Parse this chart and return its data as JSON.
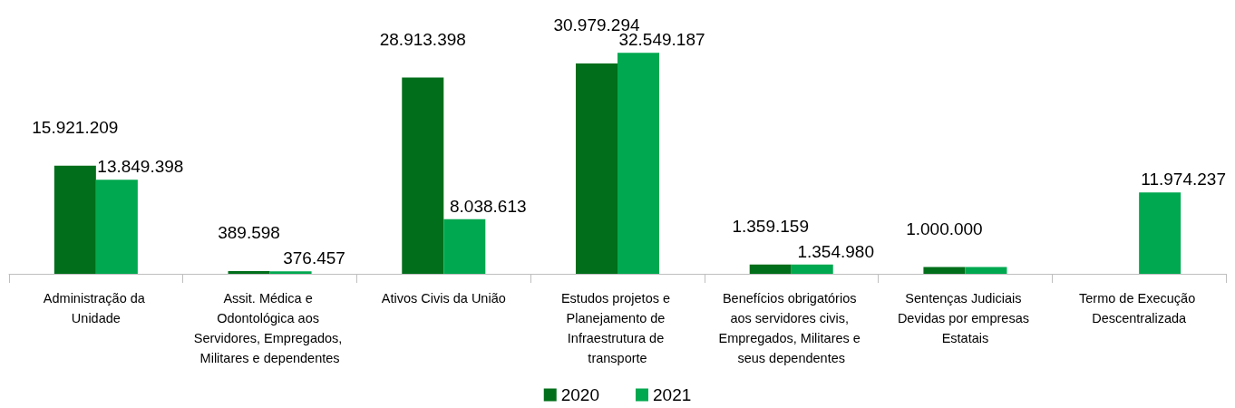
{
  "chart_data": {
    "type": "bar",
    "categories": [
      "Administração da Unidade",
      "Assit. Médica e Odontológica aos Servidores, Empregados, Militares e dependentes",
      "Ativos Civis da União",
      "Estudos projetos e Planejamento de Infraestrutura de transporte",
      "Benefícios obrigatórios aos servidores civis, Empregados, Militares e seus dependentes",
      "Sentenças Judiciais Devidas por empresas Estatais",
      "Termo de Execução Descentralizada"
    ],
    "series": [
      {
        "name": "2020",
        "color": "#006e1a",
        "values": [
          15921209,
          389598,
          28913398,
          30979294,
          1359159,
          1000000,
          null
        ],
        "value_labels": [
          "15.921.209",
          "389.598",
          "28.913.398",
          "30.979.294",
          "1.359.159",
          "1.000.000",
          null
        ]
      },
      {
        "name": "2021",
        "color": "#00a84f",
        "values": [
          13849398,
          376457,
          8038613,
          32549187,
          1354980,
          1000000,
          11974237
        ],
        "value_labels": [
          "13.849.398",
          "376.457",
          "8.038.613",
          "32.549.187",
          "1.354.980",
          null,
          "11.974.237"
        ]
      }
    ],
    "legend": "bottom",
    "grid": false,
    "tick_labels": "x"
  }
}
